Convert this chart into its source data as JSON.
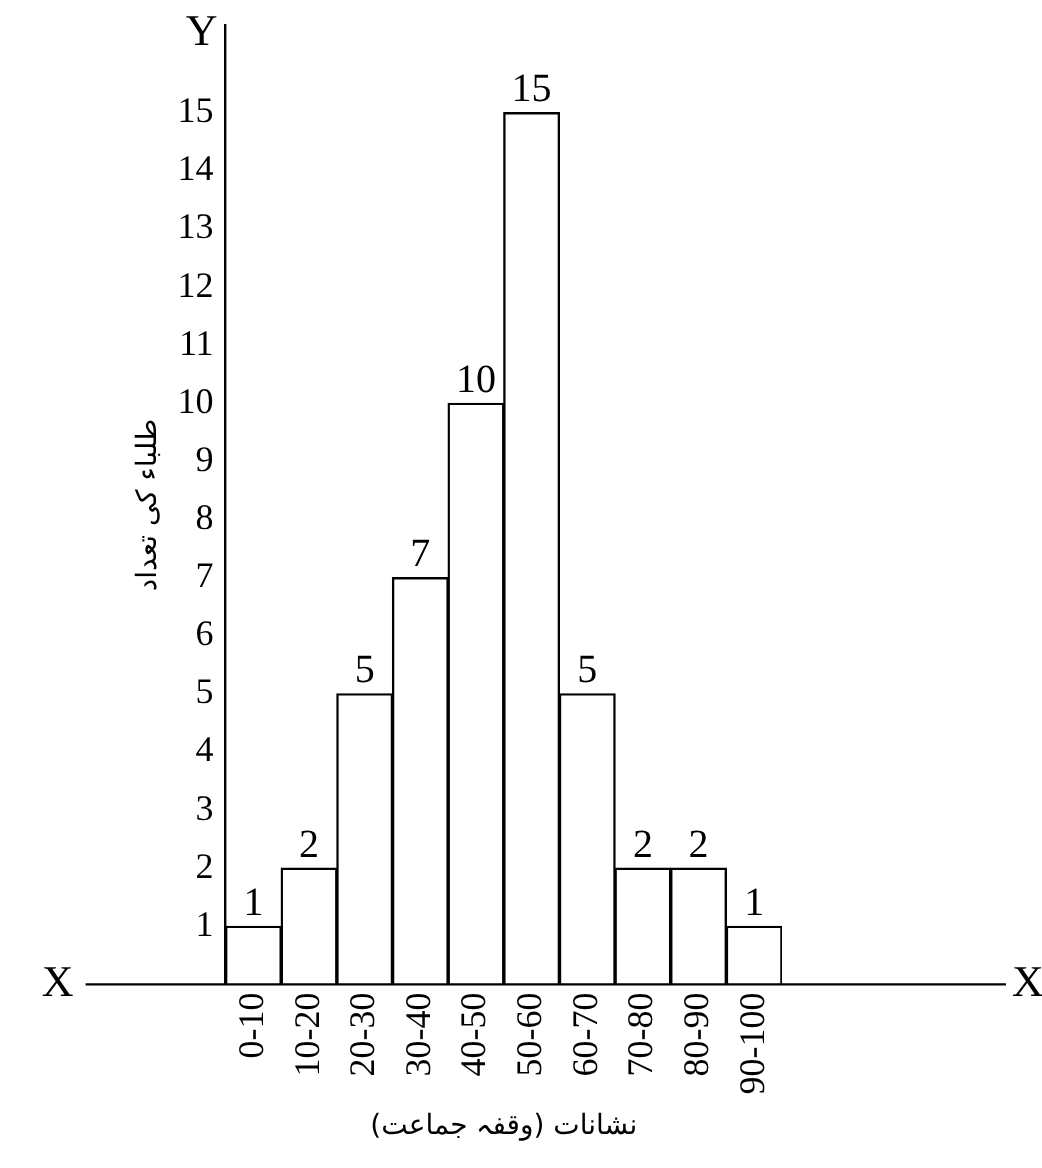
{
  "chart_data": {
    "type": "bar",
    "categories": [
      "0-10",
      "10-20",
      "20-30",
      "30-40",
      "40-50",
      "50-60",
      "60-70",
      "70-80",
      "80-90",
      "90-100"
    ],
    "values": [
      1,
      2,
      5,
      7,
      10,
      15,
      5,
      2,
      2,
      1
    ],
    "color": "#ffffff",
    "ylabel": "طلباء کی تعداد",
    "xlabel": "نشانات (وقفہ جماعت)",
    "ylim": [
      0,
      16.5
    ],
    "yticks": [
      1,
      2,
      3,
      4,
      5,
      6,
      7,
      8,
      9,
      10,
      11,
      12,
      13,
      14,
      15
    ],
    "grid": false,
    "legend": false,
    "data_labels": true,
    "annotations": [
      "Y",
      "X",
      "X"
    ]
  }
}
